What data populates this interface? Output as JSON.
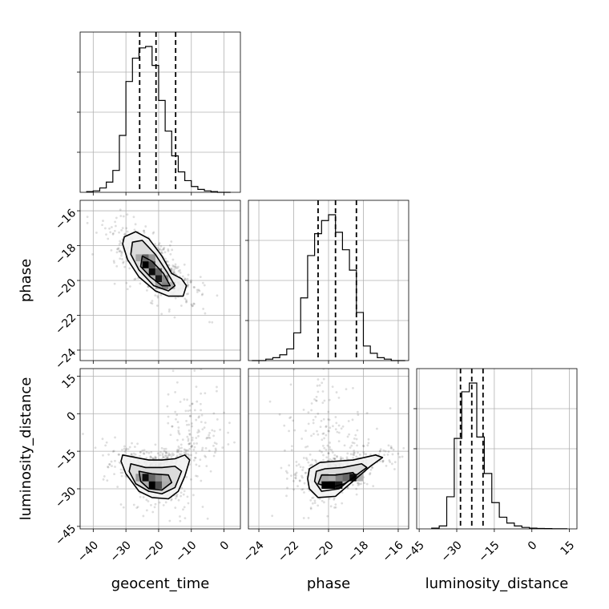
{
  "chart_data": {
    "type": "corner",
    "parameters": [
      "geocent_time",
      "phase",
      "luminosity_distance"
    ],
    "axis_labels": {
      "x": [
        "geocent_time",
        "phase",
        "luminosity_distance"
      ],
      "y": [
        "",
        "phase",
        "luminosity_distance"
      ]
    },
    "ranges": {
      "geocent_time": [
        -44,
        5
      ],
      "phase": [
        -24.6,
        -15.4
      ],
      "luminosity_distance": [
        -46,
        18
      ]
    },
    "ticks": {
      "geocent_time": [
        -40,
        -30,
        -20,
        -10,
        0
      ],
      "phase": [
        -24,
        -22,
        -20,
        -18,
        -16
      ],
      "luminosity_distance": [
        -45,
        -30,
        -15,
        0,
        15
      ]
    },
    "tick_labels": {
      "geocent_time": [
        "−40",
        "−30",
        "−20",
        "−10",
        "0"
      ],
      "phase": [
        "−24",
        "−22",
        "−20",
        "−18",
        "−16"
      ],
      "luminosity_distance": [
        "−45",
        "−30",
        "−15",
        "0",
        "15"
      ]
    },
    "quantiles": {
      "geocent_time": [
        -25.8,
        -20.8,
        -14.8
      ],
      "phase": [
        -20.6,
        -19.6,
        -18.4
      ],
      "luminosity_distance": [
        -28.5,
        -24.0,
        -19.5
      ]
    },
    "histograms": {
      "geocent_time": {
        "bin_edges": [
          -42,
          -40,
          -38,
          -36,
          -34,
          -32,
          -30,
          -28,
          -26,
          -24,
          -22,
          -20,
          -18,
          -16,
          -14,
          -12,
          -10,
          -8,
          -6,
          -4,
          -2,
          0,
          2
        ],
        "counts": [
          0.005,
          0.01,
          0.03,
          0.07,
          0.15,
          0.39,
          0.76,
          0.92,
          0.99,
          1.0,
          0.87,
          0.63,
          0.42,
          0.25,
          0.14,
          0.08,
          0.04,
          0.02,
          0.01,
          0.005,
          0.0,
          0.0
        ]
      },
      "phase": {
        "bin_edges": [
          -24.4,
          -24.0,
          -23.6,
          -23.2,
          -22.8,
          -22.4,
          -22.0,
          -21.6,
          -21.2,
          -20.8,
          -20.4,
          -20.0,
          -19.6,
          -19.2,
          -18.8,
          -18.4,
          -18.0,
          -17.6,
          -17.2,
          -16.8,
          -16.4,
          -16.0,
          -15.6
        ],
        "counts": [
          0.0,
          0.0,
          0.01,
          0.02,
          0.04,
          0.08,
          0.19,
          0.43,
          0.72,
          0.87,
          0.96,
          1.0,
          0.88,
          0.76,
          0.62,
          0.33,
          0.1,
          0.05,
          0.02,
          0.01,
          0.0,
          0.0
        ]
      },
      "luminosity_distance": {
        "bin_edges": [
          -40,
          -37,
          -34,
          -31,
          -28,
          -25,
          -22,
          -19,
          -16,
          -13,
          -10,
          -7,
          -4,
          -1,
          2,
          5,
          8,
          11,
          14
        ],
        "counts": [
          0.005,
          0.02,
          0.22,
          0.62,
          0.94,
          1.0,
          0.63,
          0.38,
          0.18,
          0.08,
          0.04,
          0.02,
          0.01,
          0.005,
          0.003,
          0.002,
          0.001,
          0.001
        ]
      }
    },
    "panels_2d": [
      {
        "x": "geocent_time",
        "y": "phase",
        "density_peak": [
          -21.5,
          -19.5
        ],
        "density_cells": [
          [
            -24,
            -19.1,
            1.0
          ],
          [
            -22,
            -19.5,
            0.95
          ],
          [
            -20,
            -19.9,
            0.9
          ],
          [
            -22,
            -19.1,
            0.7
          ],
          [
            -24,
            -18.7,
            0.6
          ],
          [
            -20,
            -19.5,
            0.6
          ],
          [
            -18,
            -20.3,
            0.5
          ],
          [
            -18,
            -19.9,
            0.45
          ],
          [
            -26,
            -18.7,
            0.35
          ],
          [
            -22,
            -18.7,
            0.4
          ],
          [
            -20,
            -20.3,
            0.35
          ],
          [
            -16,
            -20.3,
            0.3
          ]
        ],
        "contours": [
          [
            [
              -30.5,
              -17.5
            ],
            [
              -27,
              -17.2
            ],
            [
              -23,
              -17.6
            ],
            [
              -19,
              -18.6
            ],
            [
              -16,
              -19.6
            ],
            [
              -13,
              -19.9
            ],
            [
              -11.5,
              -20.3
            ],
            [
              -12.5,
              -20.9
            ],
            [
              -17,
              -20.9
            ],
            [
              -21,
              -20.6
            ],
            [
              -26,
              -19.8
            ],
            [
              -29.5,
              -18.8
            ],
            [
              -31,
              -17.9
            ]
          ],
          [
            [
              -28,
              -17.8
            ],
            [
              -25,
              -17.7
            ],
            [
              -21,
              -18.5
            ],
            [
              -17.5,
              -19.5
            ],
            [
              -15,
              -20.3
            ],
            [
              -17,
              -20.6
            ],
            [
              -21.5,
              -20.3
            ],
            [
              -26,
              -19.4
            ],
            [
              -28.5,
              -18.5
            ]
          ],
          [
            [
              -25,
              -18.6
            ],
            [
              -22,
              -18.9
            ],
            [
              -18.5,
              -19.6
            ],
            [
              -16.5,
              -20.3
            ],
            [
              -19,
              -20.3
            ],
            [
              -22.5,
              -19.8
            ],
            [
              -25.5,
              -19.2
            ]
          ]
        ]
      },
      {
        "x": "geocent_time",
        "y": "luminosity_distance",
        "density_peak": [
          -22,
          -28
        ],
        "density_cells": [
          [
            -24,
            -25.5,
            0.95
          ],
          [
            -22,
            -28.5,
            1.0
          ],
          [
            -20,
            -28.5,
            0.7
          ],
          [
            -22,
            -25.5,
            0.6
          ],
          [
            -26,
            -25.5,
            0.4
          ],
          [
            -20,
            -25.5,
            0.45
          ],
          [
            -18,
            -25.5,
            0.3
          ]
        ],
        "contours": [
          [
            [
              -31,
              -16.5
            ],
            [
              -27,
              -17.5
            ],
            [
              -23,
              -18.5
            ],
            [
              -19,
              -18.5
            ],
            [
              -15,
              -18
            ],
            [
              -12,
              -16.5
            ],
            [
              -10.5,
              -18.5
            ],
            [
              -12,
              -25
            ],
            [
              -14,
              -31
            ],
            [
              -17,
              -34
            ],
            [
              -22,
              -33.5
            ],
            [
              -26,
              -31
            ],
            [
              -30,
              -24
            ],
            [
              -31.5,
              -19
            ]
          ],
          [
            [
              -28.5,
              -20
            ],
            [
              -24,
              -21.5
            ],
            [
              -19,
              -21.5
            ],
            [
              -15,
              -21
            ],
            [
              -13,
              -23
            ],
            [
              -15,
              -29.5
            ],
            [
              -19,
              -32
            ],
            [
              -23,
              -31
            ],
            [
              -27,
              -28
            ],
            [
              -29,
              -23
            ]
          ],
          [
            [
              -26,
              -23
            ],
            [
              -22,
              -24
            ],
            [
              -17,
              -24.5
            ],
            [
              -16,
              -27.5
            ],
            [
              -19,
              -30.5
            ],
            [
              -23,
              -30
            ],
            [
              -25.5,
              -27
            ]
          ]
        ]
      },
      {
        "x": "phase",
        "y": "luminosity_distance",
        "density_peak": [
          -19.6,
          -28
        ],
        "density_cells": [
          [
            -20.2,
            -28.5,
            1.0
          ],
          [
            -19.8,
            -28.5,
            1.0
          ],
          [
            -19.4,
            -28.5,
            0.9
          ],
          [
            -18.6,
            -25.5,
            0.95
          ],
          [
            -19.0,
            -25.5,
            0.6
          ],
          [
            -19.4,
            -25.5,
            0.5
          ],
          [
            -20.2,
            -25.5,
            0.35
          ],
          [
            -18.2,
            -25.5,
            0.3
          ]
        ],
        "contours": [
          [
            [
              -21.1,
              -22
            ],
            [
              -20.5,
              -19.5
            ],
            [
              -19.6,
              -19
            ],
            [
              -18.6,
              -18.5
            ],
            [
              -17.3,
              -16.5
            ],
            [
              -16.9,
              -17.5
            ],
            [
              -17.6,
              -21
            ],
            [
              -18.6,
              -27
            ],
            [
              -19.6,
              -33
            ],
            [
              -20.6,
              -33.5
            ],
            [
              -21.1,
              -30
            ],
            [
              -21.2,
              -26
            ]
          ],
          [
            [
              -20.7,
              -23
            ],
            [
              -20.2,
              -22
            ],
            [
              -19.2,
              -21.5
            ],
            [
              -18.1,
              -20
            ],
            [
              -17.8,
              -21.5
            ],
            [
              -18.6,
              -25.5
            ],
            [
              -19.4,
              -30
            ],
            [
              -20.4,
              -31
            ],
            [
              -20.8,
              -27
            ]
          ],
          [
            [
              -20.4,
              -24.5
            ],
            [
              -19.6,
              -24.5
            ],
            [
              -18.6,
              -23.5
            ],
            [
              -18.4,
              -25
            ],
            [
              -19.1,
              -28
            ],
            [
              -19.9,
              -29.5
            ],
            [
              -20.6,
              -28
            ]
          ]
        ]
      }
    ],
    "grid": true
  }
}
